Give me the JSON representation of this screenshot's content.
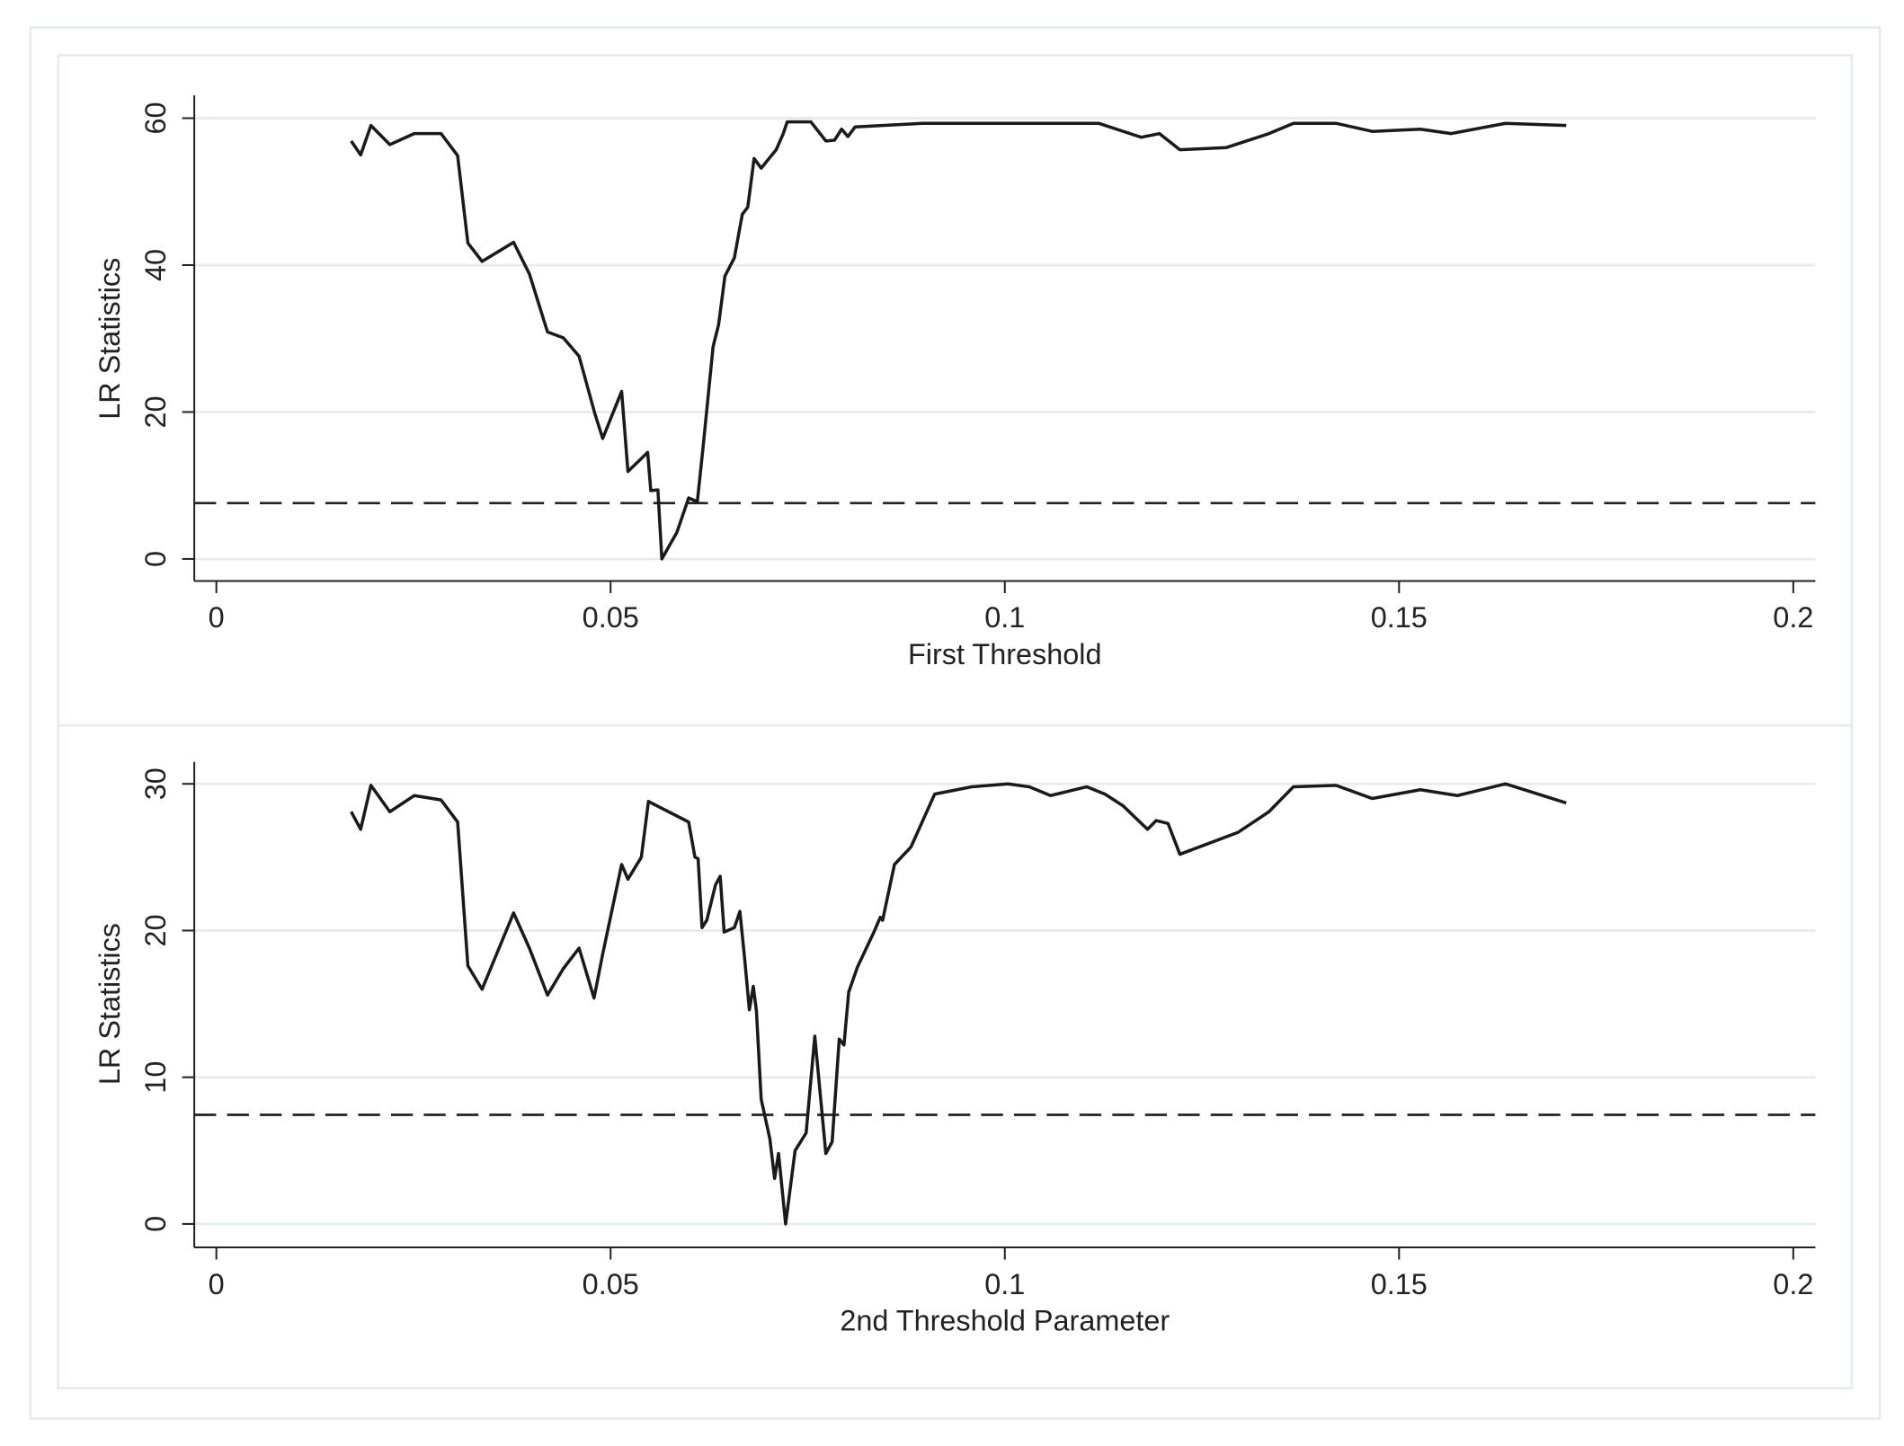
{
  "chart_data": [
    {
      "type": "line",
      "xlabel": "First Threshold",
      "ylabel": "LR Statistics",
      "xlim": [
        -0.0028,
        0.2028
      ],
      "xticks": [
        0,
        0.05,
        0.1,
        0.15,
        0.2
      ],
      "ylim": [
        -3,
        63.1
      ],
      "yticks": [
        0,
        20,
        40,
        60
      ],
      "grid": true,
      "hline": 7.6,
      "color": "#1a1a1a",
      "x": [
        0.0171,
        0.0183,
        0.0196,
        0.022,
        0.0251,
        0.0285,
        0.0306,
        0.0319,
        0.0337,
        0.0377,
        0.0397,
        0.042,
        0.044,
        0.046,
        0.048,
        0.049,
        0.0514,
        0.0522,
        0.0547,
        0.0551,
        0.056,
        0.0565,
        0.0584,
        0.0599,
        0.061,
        0.0617,
        0.063,
        0.0637,
        0.0645,
        0.0657,
        0.0667,
        0.0674,
        0.0682,
        0.0691,
        0.071,
        0.0719,
        0.0724,
        0.0754,
        0.0773,
        0.0784,
        0.0793,
        0.0801,
        0.081,
        0.0896,
        0.0958,
        0.1019,
        0.1081,
        0.1119,
        0.1173,
        0.1196,
        0.1222,
        0.1281,
        0.1335,
        0.1366,
        0.142,
        0.1466,
        0.1527,
        0.1566,
        0.1635,
        0.1712
      ],
      "values": [
        56.9,
        55.0,
        59.0,
        56.4,
        57.9,
        57.9,
        54.9,
        43.0,
        40.5,
        43.1,
        38.8,
        30.9,
        30.1,
        27.6,
        19.8,
        16.4,
        22.8,
        11.9,
        14.5,
        9.3,
        9.4,
        0,
        3.6,
        8.3,
        7.8,
        14.9,
        28.9,
        31.9,
        38.5,
        41.0,
        46.9,
        47.9,
        54.5,
        53.2,
        55.7,
        57.9,
        59.5,
        59.5,
        56.9,
        57.0,
        58.5,
        57.5,
        58.8,
        59.3,
        59.3,
        59.3,
        59.3,
        59.3,
        57.4,
        57.9,
        55.7,
        56.0,
        57.9,
        59.3,
        59.3,
        58.2,
        58.5,
        57.9,
        59.3,
        59.0
      ]
    },
    {
      "type": "line",
      "xlabel": "2nd Threshold Parameter",
      "ylabel": "LR Statistics",
      "xlim": [
        -0.0028,
        0.2028
      ],
      "xticks": [
        0,
        0.05,
        0.1,
        0.15,
        0.2
      ],
      "ylim": [
        -1.6,
        31.5
      ],
      "yticks": [
        0,
        10,
        20,
        30
      ],
      "grid": true,
      "hline": 7.44,
      "color": "#1a1a1a",
      "x": [
        0.0171,
        0.0183,
        0.0196,
        0.022,
        0.0251,
        0.0285,
        0.0306,
        0.0319,
        0.0337,
        0.0377,
        0.0397,
        0.042,
        0.044,
        0.046,
        0.0479,
        0.049,
        0.0514,
        0.0522,
        0.0539,
        0.0548,
        0.0599,
        0.0607,
        0.0611,
        0.0616,
        0.0622,
        0.0633,
        0.0639,
        0.0644,
        0.0657,
        0.0664,
        0.067,
        0.0676,
        0.0681,
        0.0685,
        0.0691,
        0.0702,
        0.0708,
        0.0713,
        0.0722,
        0.0734,
        0.0748,
        0.0759,
        0.0773,
        0.0781,
        0.079,
        0.0796,
        0.0802,
        0.0813,
        0.0834,
        0.0842,
        0.0845,
        0.086,
        0.0881,
        0.0911,
        0.0958,
        0.1004,
        0.1031,
        0.1058,
        0.1104,
        0.1127,
        0.115,
        0.1181,
        0.1192,
        0.1207,
        0.1222,
        0.1296,
        0.1335,
        0.1366,
        0.142,
        0.1466,
        0.1527,
        0.1574,
        0.1635,
        0.1712
      ],
      "values": [
        28.1,
        26.9,
        29.9,
        28.1,
        29.2,
        28.9,
        27.4,
        17.6,
        16.0,
        21.2,
        18.8,
        15.6,
        17.4,
        18.8,
        15.4,
        18.4,
        24.5,
        23.5,
        25.0,
        28.8,
        27.4,
        25.0,
        24.9,
        20.2,
        20.7,
        23.1,
        23.7,
        19.9,
        20.2,
        21.3,
        18.1,
        14.6,
        16.2,
        14.5,
        8.5,
        5.8,
        3.1,
        4.8,
        0,
        5.0,
        6.2,
        12.8,
        4.8,
        5.6,
        12.6,
        12.2,
        15.8,
        17.5,
        19.9,
        20.9,
        20.7,
        24.5,
        25.7,
        29.3,
        29.8,
        30.0,
        29.8,
        29.2,
        29.8,
        29.3,
        28.5,
        26.9,
        27.5,
        27.3,
        25.2,
        26.7,
        28.1,
        29.8,
        29.9,
        29.0,
        29.6,
        29.2,
        30.0,
        28.7
      ]
    }
  ]
}
